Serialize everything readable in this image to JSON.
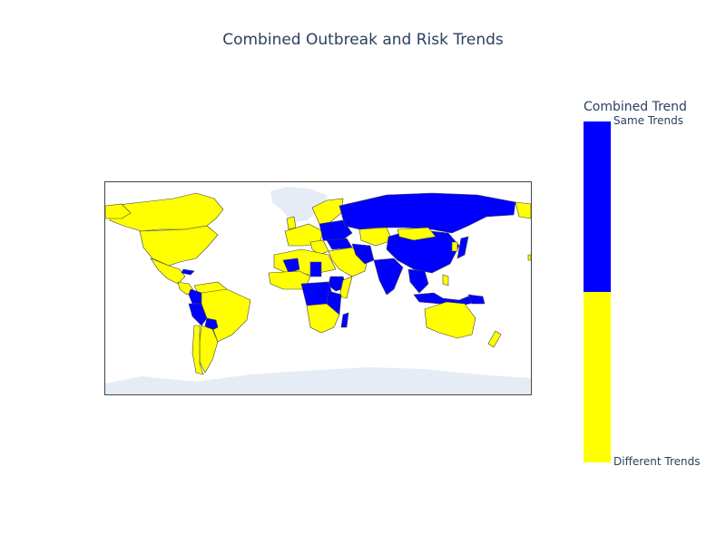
{
  "title": "Combined Outbreak and Risk Trends",
  "colorbar": {
    "title": "Combined Trend",
    "top_label": "Same Trends",
    "bottom_label": "Different Trends"
  },
  "colors": {
    "same": "#0000ff",
    "different": "#ffff00",
    "no_data": "#e5ecf6",
    "border": "#444444"
  },
  "legend": {
    "position": "right"
  }
}
